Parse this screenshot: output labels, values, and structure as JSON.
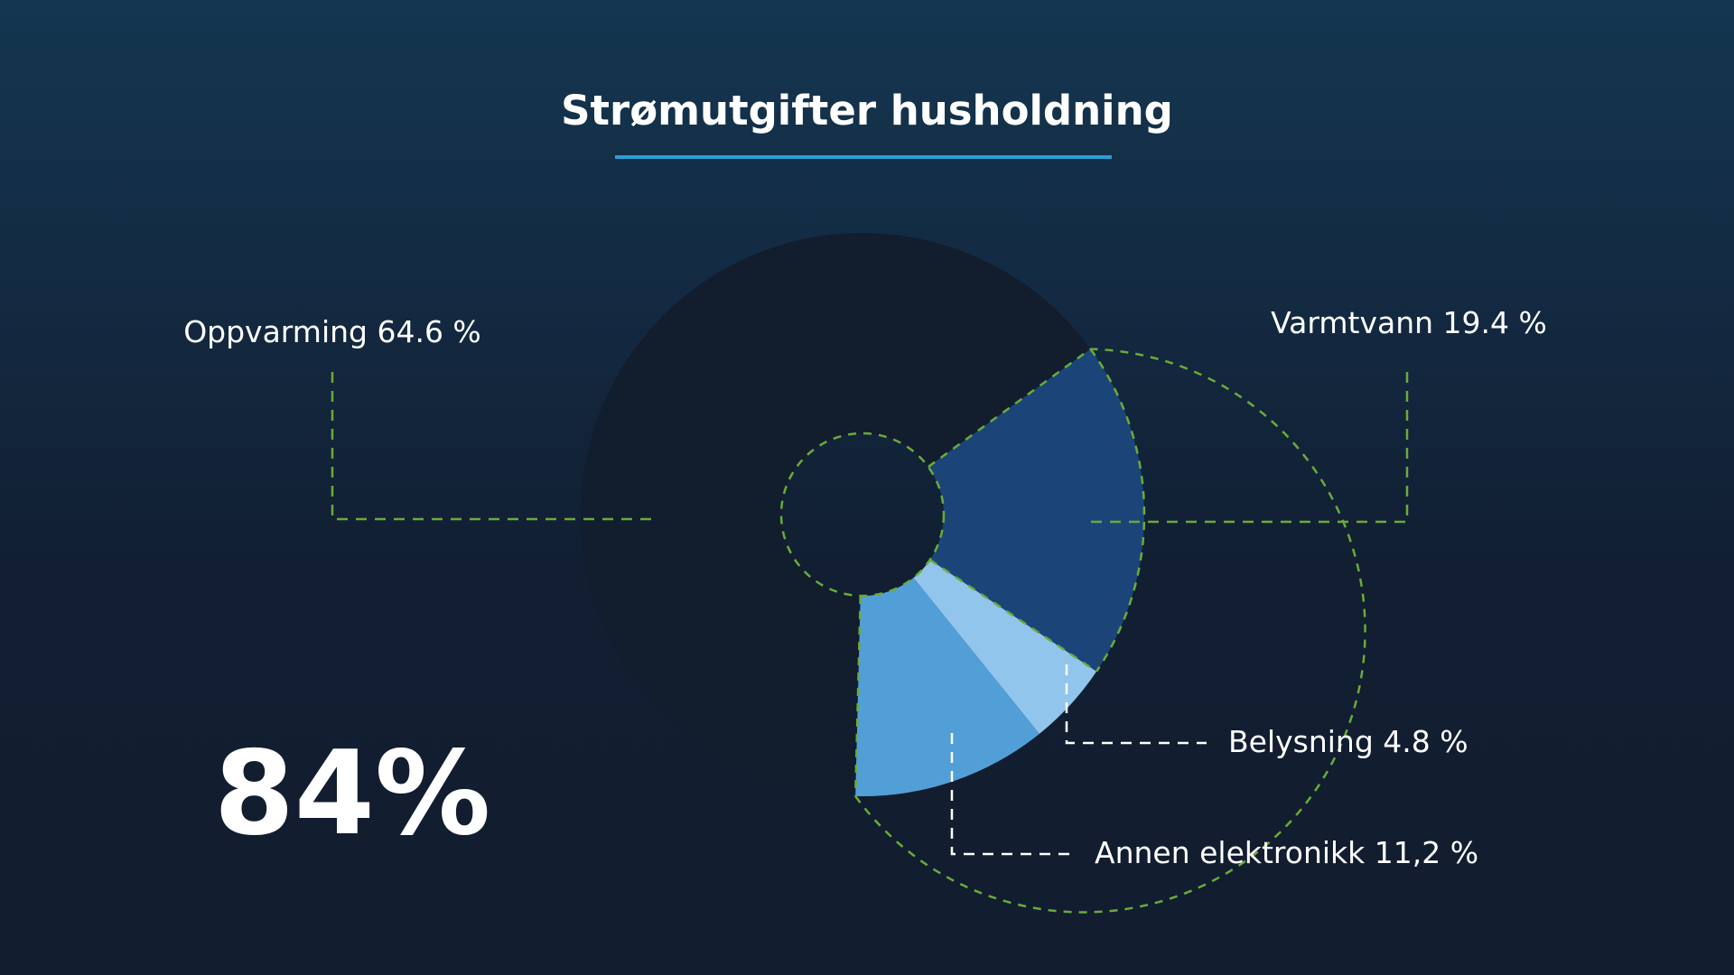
{
  "chart_data": {
    "type": "pie",
    "title": "Strømutgifter husholdning",
    "highlight_value": "84%",
    "slices": [
      {
        "label": "Oppvarming 64.6 %",
        "value": 64.6,
        "color": "#121d2e"
      },
      {
        "label": "Varmtvann 19.4 %",
        "value": 19.4,
        "color": "#1b4579"
      },
      {
        "label": "Belysning 4.8 %",
        "value": 4.8,
        "color": "#92c5ec"
      },
      {
        "label": "Annen elektronikk 11,2 %",
        "value": 11.2,
        "color": "#529fd8"
      }
    ]
  },
  "colors": {
    "title_underline": "#2a9fd6",
    "outline_dash": "#6aab3a",
    "leader_white": "#ffffff"
  }
}
